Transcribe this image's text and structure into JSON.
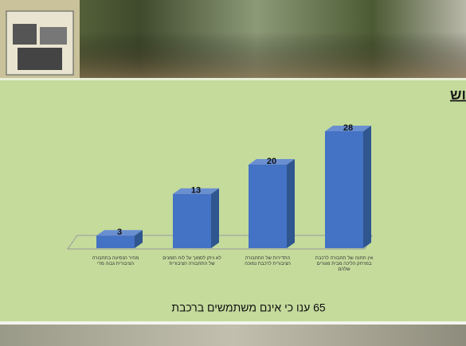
{
  "chart_data": {
    "type": "bar",
    "title": "סיבה עיקרית לאי שימוש",
    "annotation": "65 ענו כי אינם משתמשים ברכבת",
    "categories": [
      "מחיר הנסיעה בתחבורה הציבורית גבוה מדי",
      "לא ניתן לסמוך על לוח הזמנים של התחבורה הציבורית",
      "התדירות של התחבורה הציבורית לרכבת נמוכה",
      "אין תחנה של תחבורה לרכבת במרחק הליכה מבית מגורים שלהם"
    ],
    "values": [
      3,
      13,
      20,
      28
    ],
    "color": "#4472c4"
  }
}
